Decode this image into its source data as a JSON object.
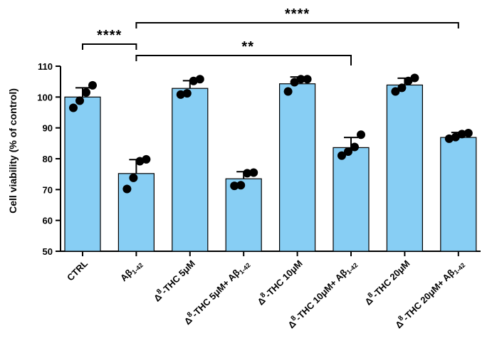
{
  "chart_data": {
    "type": "bar",
    "title": "",
    "xlabel": "",
    "ylabel": "Cell viability (% of control)",
    "ylim": [
      50,
      110
    ],
    "yticks": [
      50,
      60,
      70,
      80,
      90,
      100,
      110
    ],
    "categories": [
      {
        "prefix": "",
        "sup": "",
        "main": "CTRL",
        "sub": "",
        "tail": ""
      },
      {
        "prefix": "",
        "sup": "",
        "main": "Aβ",
        "sub": "1-42",
        "tail": ""
      },
      {
        "prefix": "Δ",
        "sup": "8",
        "main": "-THC 5μM",
        "sub": "",
        "tail": ""
      },
      {
        "prefix": "Δ",
        "sup": "8",
        "main": "-THC 5μM+ Aβ",
        "sub": "1-42",
        "tail": ""
      },
      {
        "prefix": "Δ",
        "sup": "8",
        "main": "-THC 10μM",
        "sub": "",
        "tail": ""
      },
      {
        "prefix": "Δ",
        "sup": "8",
        "main": "-THC 10μM+ Aβ",
        "sub": "1-42",
        "tail": ""
      },
      {
        "prefix": "Δ",
        "sup": "8",
        "main": "-THC 20μM",
        "sub": "",
        "tail": ""
      },
      {
        "prefix": "Δ",
        "sup": "8",
        "main": "-THC 20μM+ Aβ",
        "sub": "1-42",
        "tail": ""
      }
    ],
    "values": [
      100,
      75.2,
      102.8,
      73.5,
      104.3,
      83.6,
      103.9,
      86.9
    ],
    "errors": [
      3.0,
      4.5,
      2.5,
      2.3,
      2.2,
      3.3,
      2.2,
      1.6
    ],
    "points": [
      [
        96.5,
        98.8,
        101.5,
        103.8
      ],
      [
        70.2,
        73.8,
        79.2,
        79.8
      ],
      [
        100.8,
        101.2,
        105.2,
        105.8
      ],
      [
        71.2,
        71.4,
        75.3,
        75.5
      ],
      [
        101.8,
        104.8,
        105.8,
        105.8
      ],
      [
        81.0,
        82.3,
        83.8,
        87.8
      ],
      [
        101.8,
        103.0,
        105.2,
        106.2
      ],
      [
        86.5,
        87.0,
        88.0,
        88.3
      ]
    ],
    "significance": [
      {
        "from": 0,
        "to": 1,
        "label": "****"
      },
      {
        "from": 1,
        "to": 5,
        "label": "**"
      },
      {
        "from": 1,
        "to": 7,
        "label": "****"
      }
    ],
    "bar_color": "#87CEF4"
  }
}
